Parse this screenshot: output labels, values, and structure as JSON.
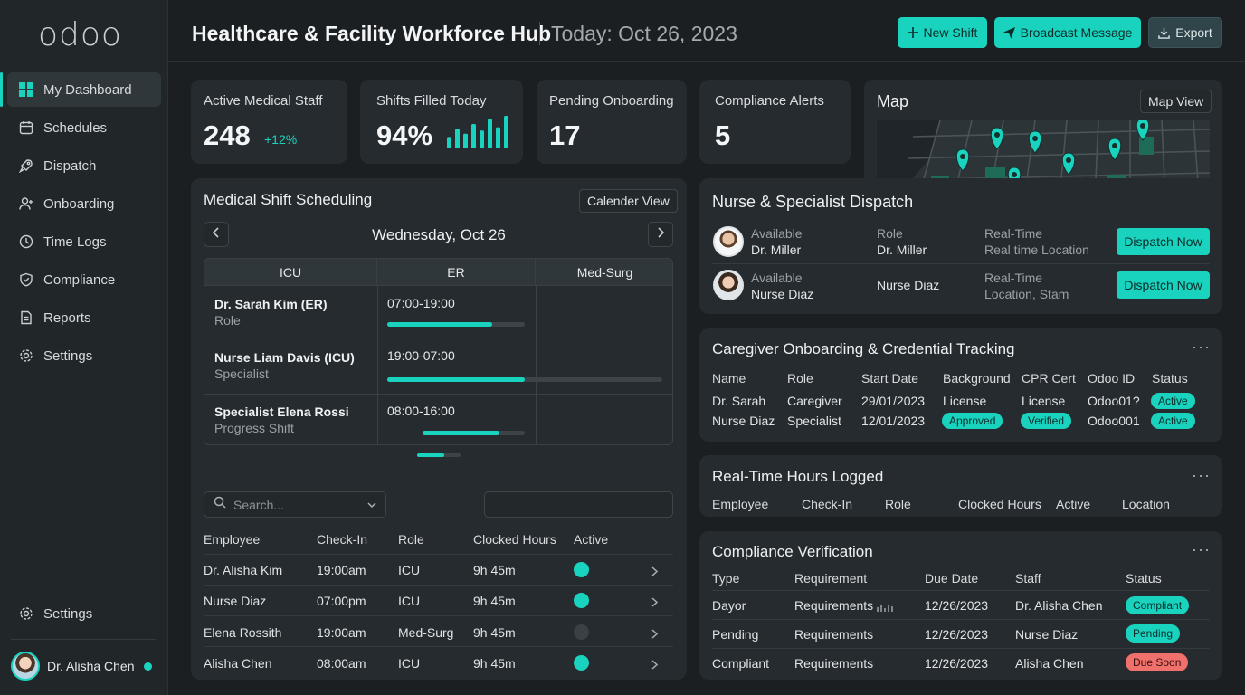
{
  "app": {
    "logo": "odoo",
    "title": "Healthcare & Facility Workforce Hub",
    "date": "Today: Oct 26, 2023"
  },
  "sidebar": {
    "items": [
      {
        "label": "My Dashboard",
        "icon": "grid-icon"
      },
      {
        "label": "Schedules",
        "icon": "calendar-icon"
      },
      {
        "label": "Dispatch",
        "icon": "rocket-icon"
      },
      {
        "label": "Onboarding",
        "icon": "user-plus-icon"
      },
      {
        "label": "Time Logs",
        "icon": "clock-icon"
      },
      {
        "label": "Compliance",
        "icon": "shield-icon"
      },
      {
        "label": "Reports",
        "icon": "document-icon"
      },
      {
        "label": "Settings",
        "icon": "gear-icon"
      }
    ],
    "bottom_settings": "Settings",
    "user_name": "Dr. Alisha Chen"
  },
  "header": {
    "new_shift": "New Shift",
    "broadcast": "Broadcast Message",
    "export": "Export"
  },
  "stats": {
    "active_staff": {
      "label": "Active Medical Staff",
      "value": "248",
      "delta": "+12%"
    },
    "shifts_filled": {
      "label": "Shifts Filled Today",
      "value": "94%",
      "bars": [
        0.35,
        0.6,
        0.45,
        0.75,
        0.55,
        0.9,
        0.65,
        1.0
      ]
    },
    "pending": {
      "label": "Pending Onboarding",
      "value": "17"
    },
    "alerts": {
      "label": "Compliance Alerts",
      "value": "5"
    }
  },
  "map": {
    "title": "Map",
    "view_button": "Map View"
  },
  "scheduling": {
    "title": "Medical Shift Scheduling",
    "view_button": "Calender View",
    "day": "Wednesday, Oct 26",
    "columns": [
      "ICU",
      "ER",
      "Med-Surg"
    ],
    "rows": [
      {
        "name": "Dr. Sarah Kim (ER)",
        "sub": "Role",
        "time": "07:00-19:00",
        "progress": 0.76
      },
      {
        "name": "Nurse Liam Davis (ICU)",
        "sub": "Specialist",
        "time": "19:00-07:00",
        "progress": 0.5
      },
      {
        "name": "Specialist Elena Rossi",
        "sub": "Progress Shift",
        "time": "08:00-16:00",
        "progress": 0.75
      }
    ],
    "search_placeholder": "Search...",
    "table_headers": [
      "Employee",
      "Check-In",
      "Role",
      "Clocked Hours",
      "Active"
    ],
    "table_rows": [
      {
        "employee": "Dr. Alisha Kim",
        "checkin": "19:00am",
        "role": "ICU",
        "hours": "9h 45m",
        "active": true
      },
      {
        "employee": "Nurse Diaz",
        "checkin": "07:00pm",
        "role": "ICU",
        "hours": "9h 45m",
        "active": true
      },
      {
        "employee": "Elena Rossith",
        "checkin": "19:00am",
        "role": "Med-Surg",
        "hours": "9h 45m",
        "active": false
      },
      {
        "employee": "Alisha Chen",
        "checkin": "08:00am",
        "role": "ICU",
        "hours": "9h 45m",
        "active": true
      }
    ]
  },
  "dispatch": {
    "title": "Nurse & Specialist Dispatch",
    "rows": [
      {
        "status": "Available",
        "name": "Dr. Miller",
        "role_label": "Role",
        "role": "Dr. Miller",
        "loc_label": "Real-Time",
        "location": "Real time Location",
        "button": "Dispatch Now"
      },
      {
        "status": "Available",
        "name": "Nurse Diaz",
        "role_label": "",
        "role": "Nurse Diaz",
        "loc_label": "Real-Time",
        "location": "Location, Stam",
        "button": "Dispatch Now"
      }
    ]
  },
  "onboarding": {
    "title": "Caregiver Onboarding & Credential Tracking",
    "headers": [
      "Name",
      "Role",
      "Start Date",
      "Background",
      "CPR Cert",
      "Odoo ID",
      "Status"
    ],
    "rows": [
      {
        "name": "Dr. Sarah",
        "role": "Caregiver",
        "start": "29/01/2023",
        "background": "License",
        "cpr": "License",
        "odoo_id": "Odoo01?",
        "status": "Active"
      },
      {
        "name": "Nurse Diaz",
        "role": "Specialist",
        "start": "12/01/2023",
        "background": "Approved",
        "cpr": "Verified",
        "odoo_id": "Odoo001",
        "status": "Active"
      }
    ]
  },
  "hours": {
    "title": "Real-Time Hours Logged",
    "headers": [
      "Employee",
      "Check-In",
      "Role",
      "Clocked Hours",
      "Active",
      "Location"
    ]
  },
  "compliance": {
    "title": "Compliance Verification",
    "headers": [
      "Type",
      "Requirement",
      "Due Date",
      "Staff",
      "Status"
    ],
    "rows": [
      {
        "type": "Dayor",
        "requirement": "Requirements",
        "due": "12/26/2023",
        "staff": "Dr. Alisha Chen",
        "status": "Compliant",
        "color": "#19d3be"
      },
      {
        "type": "Pending",
        "requirement": "Requirements",
        "due": "12/26/2023",
        "staff": "Nurse Diaz",
        "status": "Pending",
        "color": "#19d3be"
      },
      {
        "type": "Compliant",
        "requirement": "Requirements",
        "due": "12/26/2023",
        "staff": "Alisha Chen",
        "status": "Due Soon",
        "color": "#f0706c"
      }
    ]
  },
  "colors": {
    "accent": "#19d3be",
    "danger": "#f0706c",
    "background": "#1b1f22",
    "card": "#262b2f"
  }
}
